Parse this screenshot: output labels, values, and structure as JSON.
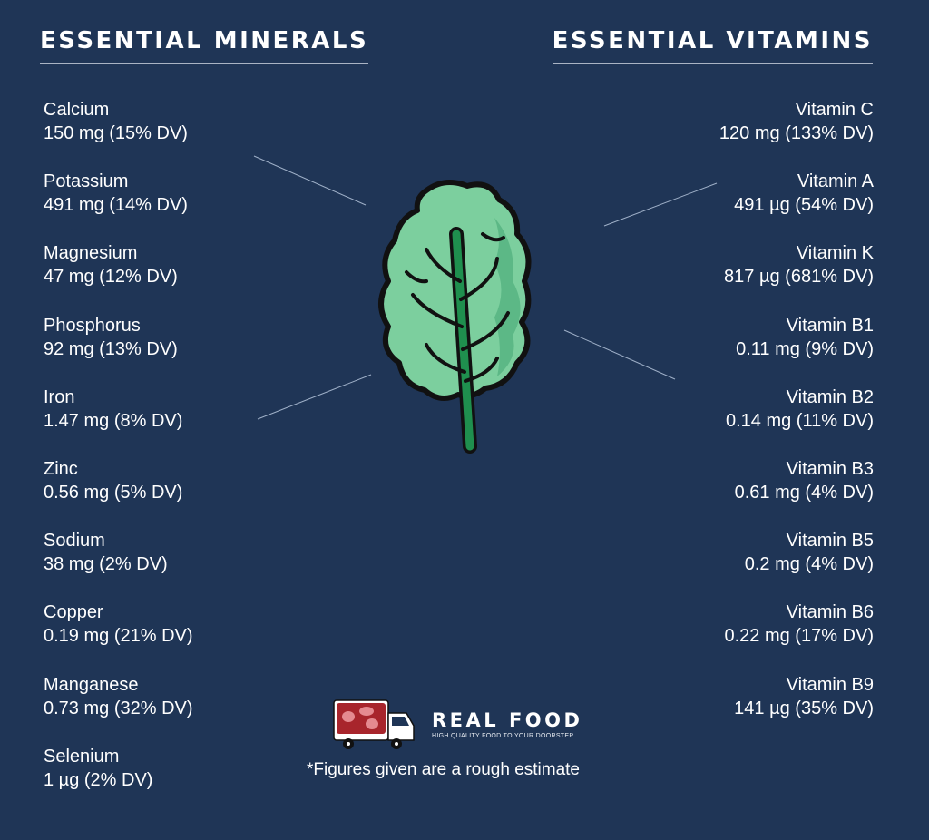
{
  "minerals": {
    "heading": "ESSENTIAL MINERALS",
    "items": [
      {
        "name": "Calcium",
        "value": "150 mg (15% DV)"
      },
      {
        "name": "Potassium",
        "value": "491 mg (14% DV)"
      },
      {
        "name": "Magnesium",
        "value": "47 mg (12% DV)"
      },
      {
        "name": "Phosphorus",
        "value": "92 mg (13% DV)"
      },
      {
        "name": "Iron",
        "value": "1.47 mg (8% DV)"
      },
      {
        "name": "Zinc",
        "value": "0.56 mg (5% DV)"
      },
      {
        "name": "Sodium",
        "value": "38 mg (2% DV)"
      },
      {
        "name": "Copper",
        "value": "0.19 mg (21% DV)"
      },
      {
        "name": "Manganese",
        "value": "0.73 mg (32% DV)"
      },
      {
        "name": "Selenium",
        "value": "1 µg (2% DV)"
      }
    ]
  },
  "vitamins": {
    "heading": "ESSENTIAL VITAMINS",
    "items": [
      {
        "name": "Vitamin C",
        "value": "120 mg (133% DV)"
      },
      {
        "name": "Vitamin A",
        "value": "491 µg (54% DV)"
      },
      {
        "name": "Vitamin K",
        "value": "817 µg (681% DV)"
      },
      {
        "name": "Vitamin B1",
        "value": "0.11 mg (9% DV)"
      },
      {
        "name": "Vitamin B2",
        "value": "0.14 mg (11% DV)"
      },
      {
        "name": "Vitamin B3",
        "value": "0.61 mg (4% DV)"
      },
      {
        "name": "Vitamin B5",
        "value": "0.2 mg (4% DV)"
      },
      {
        "name": "Vitamin B6",
        "value": "0.22 mg (17% DV)"
      },
      {
        "name": "Vitamin B9",
        "value": "141 µg (35% DV)"
      }
    ]
  },
  "brand": {
    "name": "REAL FOOD",
    "tagline": "HIGH QUALITY FOOD TO YOUR DOORSTEP"
  },
  "footnote": "*Figures given are a rough estimate",
  "colors": {
    "background": "#1f3556",
    "leaf": "#7ccf9e",
    "leaf_shade": "#5cb886",
    "stem": "#1f8f4e",
    "outline": "#111111",
    "meat": "#a8252c"
  },
  "icons": [
    "kale-leaf-icon",
    "delivery-truck-icon"
  ]
}
